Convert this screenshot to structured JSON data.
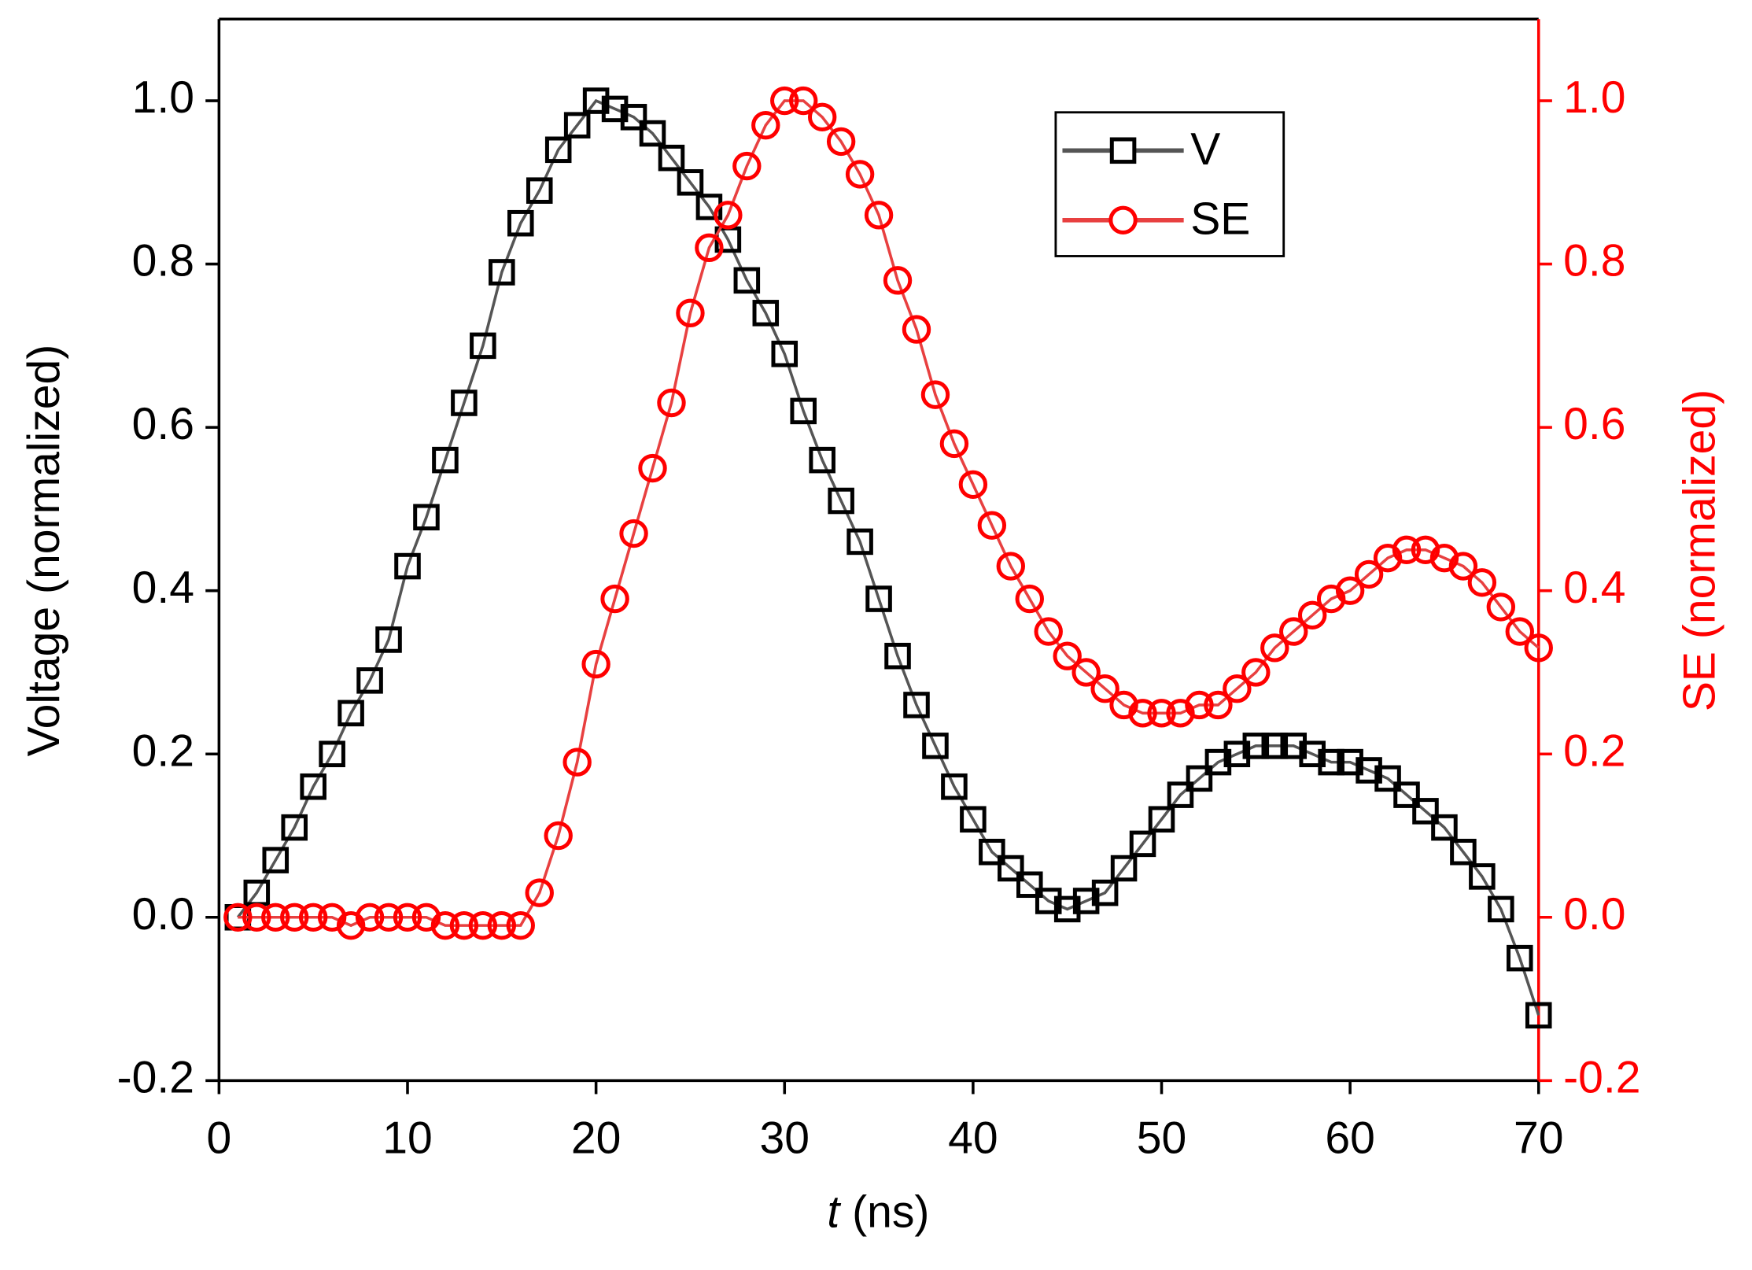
{
  "chart_data": {
    "type": "scatter_line",
    "x_label": {
      "symbol": "t",
      "unit": "(ns)"
    },
    "y_label": "Voltage (normalized)",
    "y2_label": "SE (normalized)",
    "xlim": [
      0,
      70
    ],
    "xticks": [
      0,
      10,
      20,
      30,
      40,
      50,
      60,
      70
    ],
    "ylim": [
      -0.2,
      1.1
    ],
    "yticks": [
      -0.2,
      {
        "value": 0,
        "label": "0.0"
      },
      0.2,
      0.4,
      0.6,
      0.8,
      {
        "value": 1,
        "label": "1.0"
      }
    ],
    "y2lim": [
      -0.2,
      1.1
    ],
    "y2ticks": [
      -0.2,
      {
        "value": 0,
        "label": "0.0"
      },
      0.2,
      0.4,
      0.6,
      0.8,
      {
        "value": 1,
        "label": "1.0"
      }
    ],
    "legend": "upper right",
    "x": [
      1,
      2,
      3,
      4,
      5,
      6,
      7,
      8,
      9,
      10,
      11,
      12,
      13,
      14,
      15,
      16,
      17,
      18,
      19,
      20,
      21,
      22,
      23,
      24,
      25,
      26,
      27,
      28,
      29,
      30,
      31,
      32,
      33,
      34,
      35,
      36,
      37,
      38,
      39,
      40,
      41,
      42,
      43,
      44,
      45,
      46,
      47,
      48,
      49,
      50,
      51,
      52,
      53,
      54,
      55,
      56,
      57,
      58,
      59,
      60,
      61,
      62,
      63,
      64,
      65,
      66,
      67,
      68,
      69,
      70
    ],
    "series": [
      {
        "name": "V",
        "color": "#000000",
        "marker": "square",
        "line_color": "#555555",
        "values": [
          0.0,
          0.03,
          0.07,
          0.11,
          0.16,
          0.2,
          0.25,
          0.29,
          0.34,
          0.43,
          0.49,
          0.56,
          0.63,
          0.7,
          0.79,
          0.85,
          0.89,
          0.94,
          0.97,
          1.0,
          0.99,
          0.98,
          0.96,
          0.93,
          0.9,
          0.87,
          0.83,
          0.78,
          0.74,
          0.69,
          0.62,
          0.56,
          0.51,
          0.46,
          0.39,
          0.32,
          0.26,
          0.21,
          0.16,
          0.12,
          0.08,
          0.06,
          0.04,
          0.02,
          0.01,
          0.02,
          0.03,
          0.06,
          0.09,
          0.12,
          0.15,
          0.17,
          0.19,
          0.2,
          0.21,
          0.21,
          0.21,
          0.2,
          0.19,
          0.19,
          0.18,
          0.17,
          0.15,
          0.13,
          0.11,
          0.08,
          0.05,
          0.01,
          -0.05,
          -0.12
        ]
      },
      {
        "name": "SE",
        "color": "#ff0000",
        "marker": "circle",
        "line_color": "#e84040",
        "axis": "y2",
        "values": [
          0.0,
          0.0,
          0.0,
          0.0,
          0.0,
          0.0,
          -0.01,
          0.0,
          0.0,
          0.0,
          0.0,
          -0.01,
          -0.01,
          -0.01,
          -0.01,
          -0.01,
          0.03,
          0.1,
          0.19,
          0.31,
          0.39,
          0.47,
          0.55,
          0.63,
          0.74,
          0.82,
          0.86,
          0.92,
          0.97,
          1.0,
          1.0,
          0.98,
          0.95,
          0.91,
          0.86,
          0.78,
          0.72,
          0.64,
          0.58,
          0.53,
          0.48,
          0.43,
          0.39,
          0.35,
          0.32,
          0.3,
          0.28,
          0.26,
          0.25,
          0.25,
          0.25,
          0.26,
          0.26,
          0.28,
          0.3,
          0.33,
          0.35,
          0.37,
          0.39,
          0.4,
          0.42,
          0.44,
          0.45,
          0.45,
          0.44,
          0.43,
          0.41,
          0.38,
          0.35,
          0.33
        ]
      }
    ]
  }
}
